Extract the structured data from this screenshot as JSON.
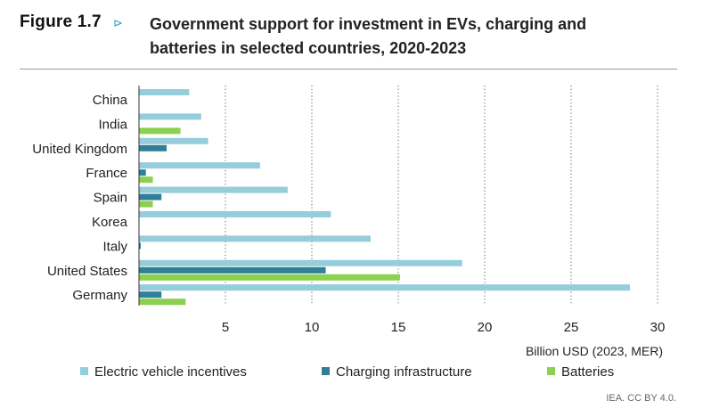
{
  "figure": {
    "label": "Figure 1.7",
    "arrow": "⊳",
    "title": "Government support for investment in EVs, charging and batteries in selected countries, 2020-2023",
    "source": "IEA. CC BY 4.0."
  },
  "chart_data": {
    "type": "bar",
    "orientation": "horizontal",
    "stacked": false,
    "title": "Government support for investment in EVs, charging and batteries in selected countries, 2020-2023",
    "xlabel": "Billion USD (2023, MER)",
    "ylabel": "",
    "xlim": [
      0,
      30
    ],
    "xticks": [
      5,
      10,
      15,
      20,
      25,
      30
    ],
    "grid": "vertical-dotted",
    "legend": "bottom",
    "categories": [
      "China",
      "India",
      "United Kingdom",
      "France",
      "Spain",
      "Korea",
      "Italy",
      "United States",
      "Germany"
    ],
    "series": [
      {
        "name": "Electric vehicle incentives",
        "color": "#95cddb",
        "values": [
          2.9,
          3.6,
          4.0,
          7.0,
          8.6,
          11.1,
          13.4,
          18.7,
          28.4
        ]
      },
      {
        "name": "Charging infrastructure",
        "color": "#2e7f97",
        "values": [
          0,
          0,
          1.6,
          0.4,
          1.3,
          0,
          0.1,
          10.8,
          1.3
        ]
      },
      {
        "name": "Batteries",
        "color": "#8bd04f",
        "values": [
          0,
          2.4,
          0,
          0.8,
          0.8,
          0,
          0,
          15.1,
          2.7
        ]
      }
    ]
  }
}
